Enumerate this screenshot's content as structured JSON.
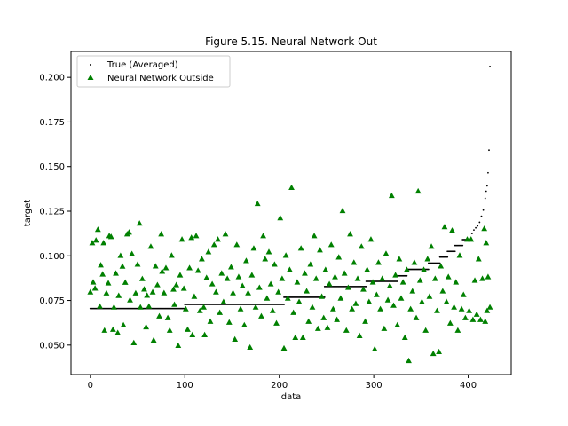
{
  "chart_data": {
    "type": "scatter",
    "title": "Figure 5.15. Neural Network Out",
    "xlabel": "data",
    "ylabel": "target",
    "xlim": [
      -20.5,
      445.5
    ],
    "ylim": [
      0.0335,
      0.2145
    ],
    "x_ticks": [
      0,
      100,
      200,
      300,
      400
    ],
    "x_tick_labels": [
      "0",
      "100",
      "200",
      "300",
      "400"
    ],
    "y_ticks": [
      0.05,
      0.075,
      0.1,
      0.125,
      0.15,
      0.175,
      0.2
    ],
    "y_tick_labels": [
      "0.050",
      "0.075",
      "0.100",
      "0.125",
      "0.150",
      "0.175",
      "0.200"
    ],
    "grid": false,
    "legend_position": "upper-left",
    "colors": {
      "true_series": "#000000",
      "nn_series": "#008000"
    },
    "series": [
      {
        "name": "True (Averaged)",
        "marker": "point",
        "segments": [
          {
            "x_from": 0,
            "x_to": 100,
            "y": 0.0705
          },
          {
            "x_from": 100,
            "x_to": 205,
            "y": 0.0728
          },
          {
            "x_from": 205,
            "x_to": 248,
            "y": 0.0768
          },
          {
            "x_from": 248,
            "x_to": 292,
            "y": 0.0828
          },
          {
            "x_from": 292,
            "x_to": 325,
            "y": 0.0857
          },
          {
            "x_from": 325,
            "x_to": 335,
            "y": 0.0888
          },
          {
            "x_from": 335,
            "x_to": 358,
            "y": 0.0924
          },
          {
            "x_from": 358,
            "x_to": 370,
            "y": 0.0959
          },
          {
            "x_from": 370,
            "x_to": 378,
            "y": 0.0993
          },
          {
            "x_from": 378,
            "x_to": 386,
            "y": 0.1025
          },
          {
            "x_from": 386,
            "x_to": 394,
            "y": 0.1058
          },
          {
            "x_from": 394,
            "x_to": 402,
            "y": 0.1091
          }
        ],
        "tail_points": [
          {
            "x": 404,
            "y": 0.1125
          },
          {
            "x": 406,
            "y": 0.1145
          },
          {
            "x": 408,
            "y": 0.1157
          },
          {
            "x": 410,
            "y": 0.1168
          },
          {
            "x": 412,
            "y": 0.1188
          },
          {
            "x": 414,
            "y": 0.1222
          },
          {
            "x": 416,
            "y": 0.1256
          },
          {
            "x": 418,
            "y": 0.1322
          },
          {
            "x": 419,
            "y": 0.1362
          },
          {
            "x": 420,
            "y": 0.1392
          },
          {
            "x": 421,
            "y": 0.1465
          },
          {
            "x": 422,
            "y": 0.1592
          },
          {
            "x": 423,
            "y": 0.2061
          }
        ]
      },
      {
        "name": "Neural Network Outside",
        "marker": "triangle",
        "points": [
          [
            0,
            0.0797
          ],
          [
            2,
            0.1072
          ],
          [
            3,
            0.0852
          ],
          [
            5,
            0.0818
          ],
          [
            6,
            0.1087
          ],
          [
            8,
            0.1147
          ],
          [
            10,
            0.0717
          ],
          [
            11,
            0.0948
          ],
          [
            13,
            0.0897
          ],
          [
            14,
            0.1072
          ],
          [
            15,
            0.0582
          ],
          [
            17,
            0.0791
          ],
          [
            19,
            0.0847
          ],
          [
            20,
            0.1112
          ],
          [
            22,
            0.1107
          ],
          [
            24,
            0.0587
          ],
          [
            25,
            0.0712
          ],
          [
            27,
            0.0902
          ],
          [
            29,
            0.0568
          ],
          [
            30,
            0.0777
          ],
          [
            32,
            0.1001
          ],
          [
            34,
            0.0941
          ],
          [
            35,
            0.0612
          ],
          [
            37,
            0.0851
          ],
          [
            39,
            0.1122
          ],
          [
            41,
            0.1132
          ],
          [
            42,
            0.0752
          ],
          [
            44,
            0.1011
          ],
          [
            46,
            0.0512
          ],
          [
            48,
            0.0791
          ],
          [
            50,
            0.0952
          ],
          [
            52,
            0.1182
          ],
          [
            53,
            0.0712
          ],
          [
            55,
            0.0871
          ],
          [
            57,
            0.0813
          ],
          [
            59,
            0.0601
          ],
          [
            60,
            0.0778
          ],
          [
            62,
            0.0717
          ],
          [
            64,
            0.1052
          ],
          [
            66,
            0.0797
          ],
          [
            67,
            0.0527
          ],
          [
            69,
            0.0942
          ],
          [
            71,
            0.0837
          ],
          [
            73,
            0.0662
          ],
          [
            75,
            0.1122
          ],
          [
            76,
            0.0912
          ],
          [
            78,
            0.0792
          ],
          [
            80,
            0.0932
          ],
          [
            82,
            0.0652
          ],
          [
            84,
            0.0582
          ],
          [
            86,
            0.1002
          ],
          [
            88,
            0.0812
          ],
          [
            89,
            0.0727
          ],
          [
            91,
            0.0837
          ],
          [
            93,
            0.0497
          ],
          [
            95,
            0.0892
          ],
          [
            97,
            0.1092
          ],
          [
            99,
            0.0817
          ],
          [
            101,
            0.0702
          ],
          [
            103,
            0.0587
          ],
          [
            105,
            0.0932
          ],
          [
            107,
            0.1102
          ],
          [
            108,
            0.0557
          ],
          [
            110,
            0.0772
          ],
          [
            112,
            0.1112
          ],
          [
            114,
            0.0917
          ],
          [
            116,
            0.0692
          ],
          [
            118,
            0.0982
          ],
          [
            120,
            0.0712
          ],
          [
            121,
            0.0557
          ],
          [
            123,
            0.0877
          ],
          [
            125,
            0.1022
          ],
          [
            127,
            0.0632
          ],
          [
            129,
            0.0842
          ],
          [
            131,
            0.1062
          ],
          [
            133,
            0.0797
          ],
          [
            135,
            0.1092
          ],
          [
            137,
            0.0682
          ],
          [
            139,
            0.0902
          ],
          [
            141,
            0.0742
          ],
          [
            143,
            0.1122
          ],
          [
            145,
            0.0872
          ],
          [
            147,
            0.0627
          ],
          [
            149,
            0.0937
          ],
          [
            151,
            0.0792
          ],
          [
            153,
            0.0532
          ],
          [
            155,
            0.1062
          ],
          [
            157,
            0.0882
          ],
          [
            159,
            0.0702
          ],
          [
            161,
            0.0832
          ],
          [
            163,
            0.0612
          ],
          [
            165,
            0.0972
          ],
          [
            167,
            0.0792
          ],
          [
            169,
            0.0487
          ],
          [
            171,
            0.0892
          ],
          [
            173,
            0.1042
          ],
          [
            175,
            0.0712
          ],
          [
            177,
            0.1292
          ],
          [
            179,
            0.0822
          ],
          [
            181,
            0.0662
          ],
          [
            183,
            0.1112
          ],
          [
            185,
            0.0982
          ],
          [
            187,
            0.0762
          ],
          [
            189,
            0.1022
          ],
          [
            191,
            0.0842
          ],
          [
            193,
            0.0692
          ],
          [
            195,
            0.0952
          ],
          [
            197,
            0.0622
          ],
          [
            199,
            0.0797
          ],
          [
            201,
            0.1212
          ],
          [
            203,
            0.0872
          ],
          [
            205,
            0.0482
          ],
          [
            207,
            0.1002
          ],
          [
            209,
            0.0762
          ],
          [
            211,
            0.0922
          ],
          [
            213,
            0.1382
          ],
          [
            215,
            0.0682
          ],
          [
            217,
            0.0542
          ],
          [
            219,
            0.0852
          ],
          [
            221,
            0.0742
          ],
          [
            223,
            0.1042
          ],
          [
            225,
            0.0542
          ],
          [
            227,
            0.0902
          ],
          [
            229,
            0.0802
          ],
          [
            231,
            0.0632
          ],
          [
            233,
            0.0952
          ],
          [
            235,
            0.0712
          ],
          [
            237,
            0.1112
          ],
          [
            239,
            0.0872
          ],
          [
            241,
            0.0592
          ],
          [
            243,
            0.1032
          ],
          [
            245,
            0.0772
          ],
          [
            247,
            0.0652
          ],
          [
            249,
            0.0922
          ],
          [
            251,
            0.0597
          ],
          [
            253,
            0.0842
          ],
          [
            255,
            0.1062
          ],
          [
            257,
            0.0702
          ],
          [
            259,
            0.0882
          ],
          [
            261,
            0.0642
          ],
          [
            263,
            0.0992
          ],
          [
            265,
            0.0762
          ],
          [
            267,
            0.1252
          ],
          [
            269,
            0.0902
          ],
          [
            271,
            0.0582
          ],
          [
            273,
            0.0822
          ],
          [
            275,
            0.1122
          ],
          [
            277,
            0.0702
          ],
          [
            279,
            0.0962
          ],
          [
            281,
            0.0732
          ],
          [
            283,
            0.0872
          ],
          [
            285,
            0.0552
          ],
          [
            287,
            0.1052
          ],
          [
            289,
            0.0812
          ],
          [
            291,
            0.0632
          ],
          [
            293,
            0.0922
          ],
          [
            295,
            0.0742
          ],
          [
            297,
            0.1092
          ],
          [
            299,
            0.0852
          ],
          [
            301,
            0.0477
          ],
          [
            303,
            0.0782
          ],
          [
            305,
            0.0962
          ],
          [
            307,
            0.0702
          ],
          [
            309,
            0.0872
          ],
          [
            311,
            0.0592
          ],
          [
            313,
            0.1012
          ],
          [
            315,
            0.0752
          ],
          [
            317,
            0.0832
          ],
          [
            319,
            0.1337
          ],
          [
            321,
            0.0722
          ],
          [
            323,
            0.0892
          ],
          [
            325,
            0.0612
          ],
          [
            327,
            0.0982
          ],
          [
            329,
            0.0762
          ],
          [
            331,
            0.0852
          ],
          [
            333,
            0.0542
          ],
          [
            335,
            0.0922
          ],
          [
            337,
            0.0412
          ],
          [
            339,
            0.0702
          ],
          [
            341,
            0.0802
          ],
          [
            343,
            0.0962
          ],
          [
            345,
            0.0652
          ],
          [
            347,
            0.1362
          ],
          [
            349,
            0.0862
          ],
          [
            351,
            0.0742
          ],
          [
            353,
            0.0922
          ],
          [
            355,
            0.0582
          ],
          [
            357,
            0.0982
          ],
          [
            359,
            0.0772
          ],
          [
            361,
            0.1052
          ],
          [
            363,
            0.0452
          ],
          [
            365,
            0.0872
          ],
          [
            367,
            0.0692
          ],
          [
            369,
            0.0462
          ],
          [
            371,
            0.0942
          ],
          [
            373,
            0.0802
          ],
          [
            375,
            0.1162
          ],
          [
            377,
            0.0742
          ],
          [
            379,
            0.0882
          ],
          [
            381,
            0.0622
          ],
          [
            383,
            0.1142
          ],
          [
            385,
            0.0712
          ],
          [
            387,
            0.0852
          ],
          [
            389,
            0.0582
          ],
          [
            391,
            0.1002
          ],
          [
            393,
            0.0702
          ],
          [
            395,
            0.0782
          ],
          [
            397,
            0.0652
          ],
          [
            399,
            0.1092
          ],
          [
            401,
            0.0692
          ],
          [
            403,
            0.1092
          ],
          [
            405,
            0.0642
          ],
          [
            407,
            0.0862
          ],
          [
            409,
            0.0672
          ],
          [
            411,
            0.0982
          ],
          [
            413,
            0.0642
          ],
          [
            415,
            0.0872
          ],
          [
            417,
            0.1152
          ],
          [
            418,
            0.0632
          ],
          [
            419,
            0.1072
          ],
          [
            420,
            0.0692
          ],
          [
            421,
            0.0882
          ],
          [
            423,
            0.0712
          ]
        ]
      }
    ]
  }
}
